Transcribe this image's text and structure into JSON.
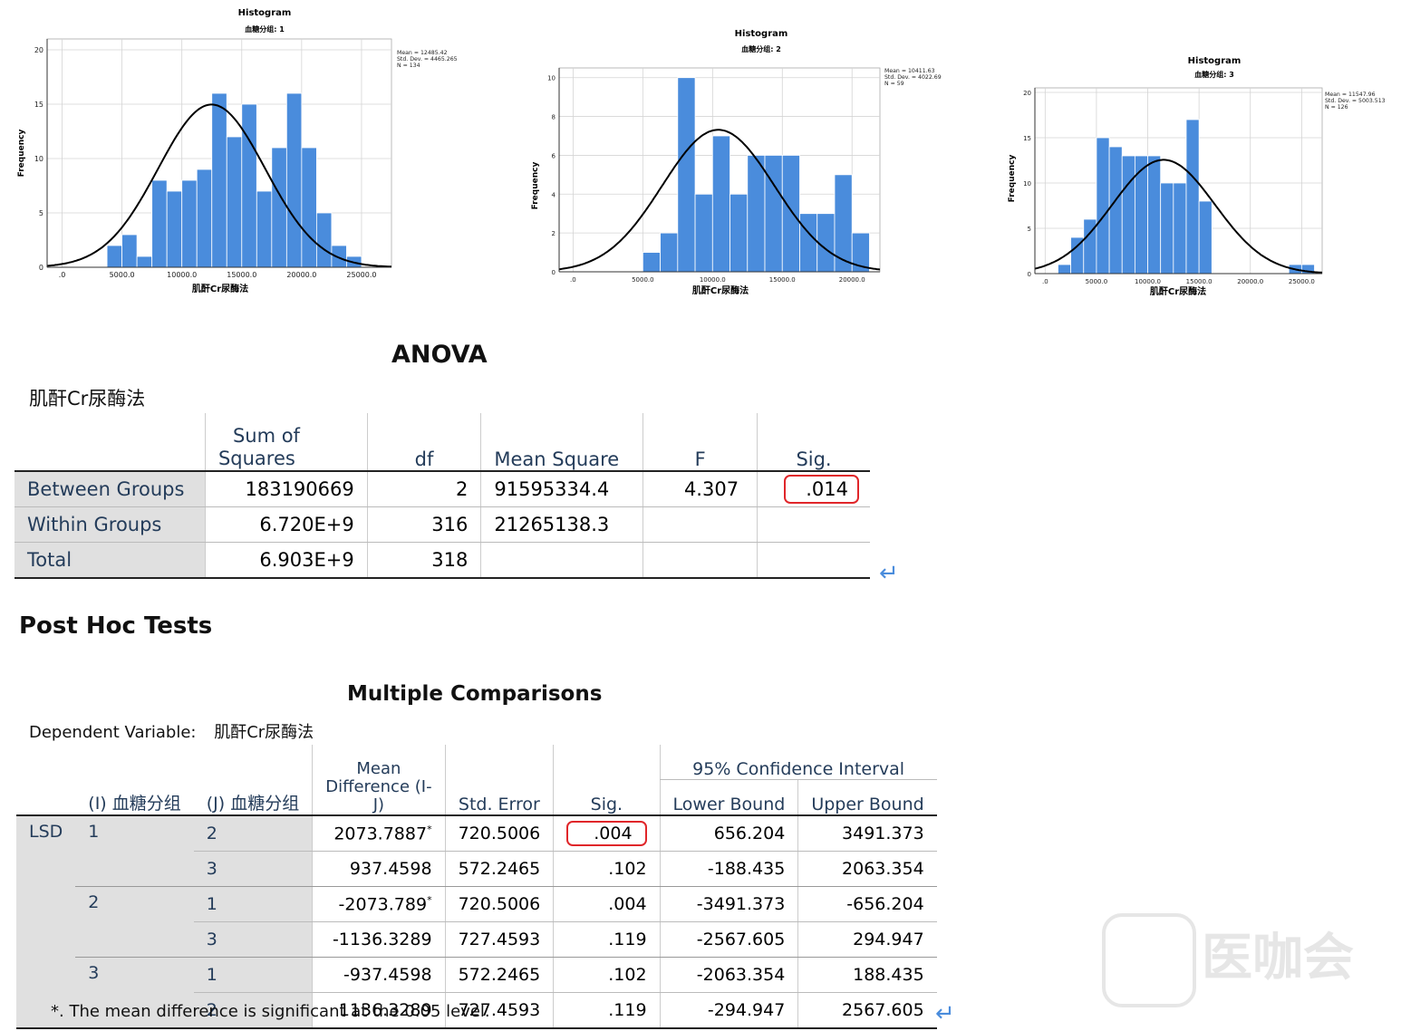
{
  "chart_data": [
    {
      "type": "bar",
      "title": "Histogram",
      "subtitle": "血糖分组: 1",
      "xlabel": "肌酐Cr尿酶法",
      "ylabel": "Frequency",
      "bin_start": 0,
      "bin_width": 1250,
      "values": [
        0,
        0,
        0,
        2,
        3,
        1,
        8,
        7,
        8,
        9,
        16,
        12,
        15,
        7,
        11,
        16,
        11,
        5,
        2,
        1,
        0
      ],
      "xlim": [
        -1250,
        27500
      ],
      "ylim": [
        0,
        21
      ],
      "xticks": [
        ".0",
        "5000.0",
        "10000.0",
        "15000.0",
        "20000.0",
        "25000.0"
      ],
      "yticks": [
        "0",
        "5",
        "10",
        "15",
        "20"
      ],
      "stats": [
        "Mean = 12485.42",
        "Std. Dev. = 4465.265",
        "N = 134"
      ],
      "curve": {
        "mean": 12485.42,
        "sd": 4465.265,
        "n": 134
      }
    },
    {
      "type": "bar",
      "title": "Histogram",
      "subtitle": "血糖分组: 2",
      "xlabel": "肌酐Cr尿酶法",
      "ylabel": "Frequency",
      "bin_start": 0,
      "bin_width": 1250,
      "values": [
        0,
        0,
        0,
        0,
        1,
        2,
        10,
        4,
        7,
        4,
        6,
        6,
        6,
        3,
        3,
        5,
        2
      ],
      "xlim": [
        -1000,
        22000
      ],
      "ylim": [
        0,
        10.5
      ],
      "xticks": [
        ".0",
        "5000.0",
        "10000.0",
        "15000.0",
        "20000.0"
      ],
      "yticks": [
        "0",
        "2",
        "4",
        "6",
        "8",
        "10"
      ],
      "stats": [
        "Mean = 10411.63",
        "Std. Dev. = 4022.69",
        "N = 59"
      ],
      "curve": {
        "mean": 10411.63,
        "sd": 4022.69,
        "n": 59
      }
    },
    {
      "type": "bar",
      "title": "Histogram",
      "subtitle": "血糖分组: 3",
      "xlabel": "肌酐Cr尿酶法",
      "ylabel": "Frequency",
      "bin_start": 0,
      "bin_width": 1250,
      "values": [
        0,
        1,
        4,
        6,
        15,
        14,
        13,
        13,
        13,
        10,
        10,
        17,
        8,
        0,
        0,
        0,
        0,
        0,
        0,
        1,
        1
      ],
      "xlim": [
        -1000,
        27000
      ],
      "ylim": [
        0,
        20.5
      ],
      "xticks": [
        ".0",
        "5000.0",
        "10000.0",
        "15000.0",
        "20000.0",
        "25000.0"
      ],
      "yticks": [
        "0",
        "5",
        "10",
        "15",
        "20"
      ],
      "stats": [
        "Mean = 11547.96",
        "Std. Dev. = 5003.513",
        "N = 126"
      ],
      "curve": {
        "mean": 11547.96,
        "sd": 5003.513,
        "n": 126
      }
    }
  ],
  "anova": {
    "title": "ANOVA",
    "dep": "肌酐Cr尿酶法",
    "headers": {
      "ss1": "Sum of",
      "ss2": "Squares",
      "df": "df",
      "ms": "Mean Square",
      "f": "F",
      "sig": "Sig."
    },
    "rows": [
      {
        "label": "Between Groups",
        "ss": "183190669",
        "df": "2",
        "ms": "91595334.4",
        "f": "4.307",
        "sig": ".014"
      },
      {
        "label": "Within Groups",
        "ss": "6.720E+9",
        "df": "316",
        "ms": "21265138.3",
        "f": "",
        "sig": ""
      },
      {
        "label": "Total",
        "ss": "6.903E+9",
        "df": "318",
        "ms": "",
        "f": "",
        "sig": ""
      }
    ]
  },
  "posthoc": {
    "heading": "Post Hoc Tests",
    "title": "Multiple Comparisons",
    "dep_label": "Dependent Variable:",
    "dep": "肌酐Cr尿酶法",
    "headers": {
      "i": "(I) 血糖分组",
      "j": "(J) 血糖分组",
      "md1": "Mean",
      "md2": "Difference (I-",
      "md3": "J)",
      "se": "Std. Error",
      "sig": "Sig.",
      "ci": "95% Confidence Interval",
      "lb": "Lower Bound",
      "ub": "Upper Bound"
    },
    "method": "LSD",
    "rows": [
      {
        "i": "1",
        "j": "2",
        "md": "2073.7887",
        "star": "*",
        "se": "720.5006",
        "sig": ".004",
        "lb": "656.204",
        "ub": "3491.373"
      },
      {
        "i": "",
        "j": "3",
        "md": "937.4598",
        "star": "",
        "se": "572.2465",
        "sig": ".102",
        "lb": "-188.435",
        "ub": "2063.354"
      },
      {
        "i": "2",
        "j": "1",
        "md": "-2073.789",
        "star": "*",
        "se": "720.5006",
        "sig": ".004",
        "lb": "-3491.373",
        "ub": "-656.204"
      },
      {
        "i": "",
        "j": "3",
        "md": "-1136.3289",
        "star": "",
        "se": "727.4593",
        "sig": ".119",
        "lb": "-2567.605",
        "ub": "294.947"
      },
      {
        "i": "3",
        "j": "1",
        "md": "-937.4598",
        "star": "",
        "se": "572.2465",
        "sig": ".102",
        "lb": "-2063.354",
        "ub": "188.435"
      },
      {
        "i": "",
        "j": "2",
        "md": "1136.3289",
        "star": "",
        "se": "727.4593",
        "sig": ".119",
        "lb": "-294.947",
        "ub": "2567.605"
      }
    ],
    "footnote": "*. The mean difference is significant at the 0.05 level."
  },
  "watermark": "医咖会",
  "colors": {
    "bar": "#4a8cdc",
    "header_text": "#243c5a",
    "highlight": "#e0262a",
    "shade": "#e0e0e0"
  }
}
